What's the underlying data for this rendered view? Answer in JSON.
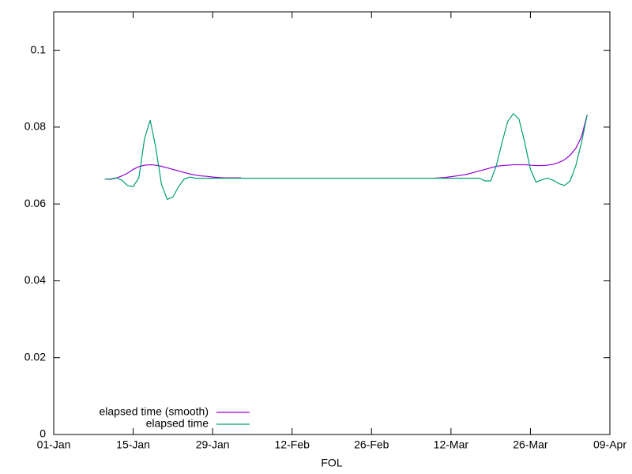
{
  "chart_data": {
    "type": "line",
    "xlabel": "FOL",
    "x": [
      "10-Jan",
      "11-Jan",
      "12-Jan",
      "13-Jan",
      "14-Jan",
      "15-Jan",
      "16-Jan",
      "17-Jan",
      "18-Jan",
      "19-Jan",
      "20-Jan",
      "21-Jan",
      "22-Jan",
      "23-Jan",
      "24-Jan",
      "25-Jan",
      "26-Jan",
      "27-Jan",
      "28-Jan",
      "29-Jan",
      "30-Jan",
      "31-Jan",
      "01-Feb",
      "02-Feb",
      "03-Feb",
      "04-Feb",
      "05-Feb",
      "06-Feb",
      "07-Feb",
      "08-Feb",
      "09-Feb",
      "10-Feb",
      "11-Feb",
      "12-Feb",
      "13-Feb",
      "14-Feb",
      "15-Feb",
      "16-Feb",
      "17-Feb",
      "18-Feb",
      "19-Feb",
      "20-Feb",
      "21-Feb",
      "22-Feb",
      "23-Feb",
      "24-Feb",
      "25-Feb",
      "26-Feb",
      "27-Feb",
      "28-Feb",
      "01-Mar",
      "02-Mar",
      "03-Mar",
      "04-Mar",
      "05-Mar",
      "06-Mar",
      "07-Mar",
      "08-Mar",
      "09-Mar",
      "10-Mar",
      "11-Mar",
      "12-Mar",
      "13-Mar",
      "14-Mar",
      "15-Mar",
      "16-Mar",
      "17-Mar",
      "18-Mar",
      "19-Mar",
      "20-Mar",
      "21-Mar",
      "22-Mar",
      "23-Mar",
      "24-Mar",
      "25-Mar",
      "26-Mar",
      "27-Mar",
      "28-Mar",
      "29-Mar",
      "30-Mar",
      "31-Mar",
      "01-Apr",
      "02-Apr",
      "03-Apr",
      "04-Apr",
      "05-Apr"
    ],
    "series": [
      {
        "name": "elapsed time (smooth)",
        "color": "#9400d3",
        "values": [
          0.0665,
          0.0664,
          0.0667,
          0.0673,
          0.068,
          0.069,
          0.0697,
          0.0701,
          0.0702,
          0.0701,
          0.0698,
          0.0694,
          0.069,
          0.0686,
          0.0682,
          0.0678,
          0.0675,
          0.0673,
          0.0672,
          0.067,
          0.0669,
          0.0668,
          0.0668,
          0.0668,
          0.0668,
          null,
          null,
          null,
          null,
          null,
          null,
          null,
          null,
          null,
          null,
          null,
          null,
          null,
          null,
          null,
          null,
          null,
          null,
          null,
          null,
          null,
          null,
          null,
          null,
          null,
          null,
          null,
          null,
          null,
          null,
          null,
          null,
          null,
          0.0667,
          0.0668,
          0.0669,
          0.0671,
          0.0673,
          0.0675,
          0.0678,
          0.0682,
          0.0686,
          0.069,
          0.0694,
          0.0698,
          0.07,
          0.0701,
          0.0702,
          0.0702,
          0.0702,
          0.0701,
          0.07,
          0.07,
          0.0701,
          0.0703,
          0.0708,
          0.0715,
          0.0727,
          0.0745,
          0.0775,
          0.0832
        ]
      },
      {
        "name": "elapsed time",
        "color": "#009e73",
        "values": [
          0.0665,
          0.0665,
          0.0668,
          0.0662,
          0.0648,
          0.0645,
          0.0668,
          0.077,
          0.0818,
          0.0745,
          0.065,
          0.0612,
          0.0618,
          0.0645,
          0.0665,
          0.067,
          0.0667,
          0.0667,
          0.0667,
          0.0667,
          0.0667,
          0.0667,
          0.0667,
          0.0667,
          0.0667,
          0.0667,
          0.0667,
          0.0667,
          0.0667,
          0.0667,
          0.0667,
          0.0667,
          0.0667,
          0.0667,
          0.0667,
          0.0667,
          0.0667,
          0.0667,
          0.0667,
          0.0667,
          0.0667,
          0.0667,
          0.0667,
          0.0667,
          0.0667,
          0.0667,
          0.0667,
          0.0667,
          0.0667,
          0.0667,
          0.0667,
          0.0667,
          0.0667,
          0.0667,
          0.0667,
          0.0667,
          0.0667,
          0.0667,
          0.0667,
          0.0667,
          0.0667,
          0.0667,
          0.0667,
          0.0667,
          0.0667,
          0.0667,
          0.0667,
          0.066,
          0.066,
          0.07,
          0.076,
          0.0815,
          0.0835,
          0.082,
          0.076,
          0.069,
          0.0657,
          0.0663,
          0.0667,
          0.0662,
          0.0653,
          0.0648,
          0.066,
          0.07,
          0.076,
          0.0832
        ]
      }
    ],
    "xlim": [
      "01-Jan",
      "09-Apr"
    ],
    "xticks": [
      "01-Jan",
      "15-Jan",
      "29-Jan",
      "12-Feb",
      "26-Feb",
      "12-Mar",
      "26-Mar",
      "09-Apr"
    ],
    "ylim": [
      0,
      0.11
    ],
    "yticks": [
      0,
      0.02,
      0.04,
      0.06,
      0.08,
      0.1
    ],
    "legend": "bottom left"
  }
}
